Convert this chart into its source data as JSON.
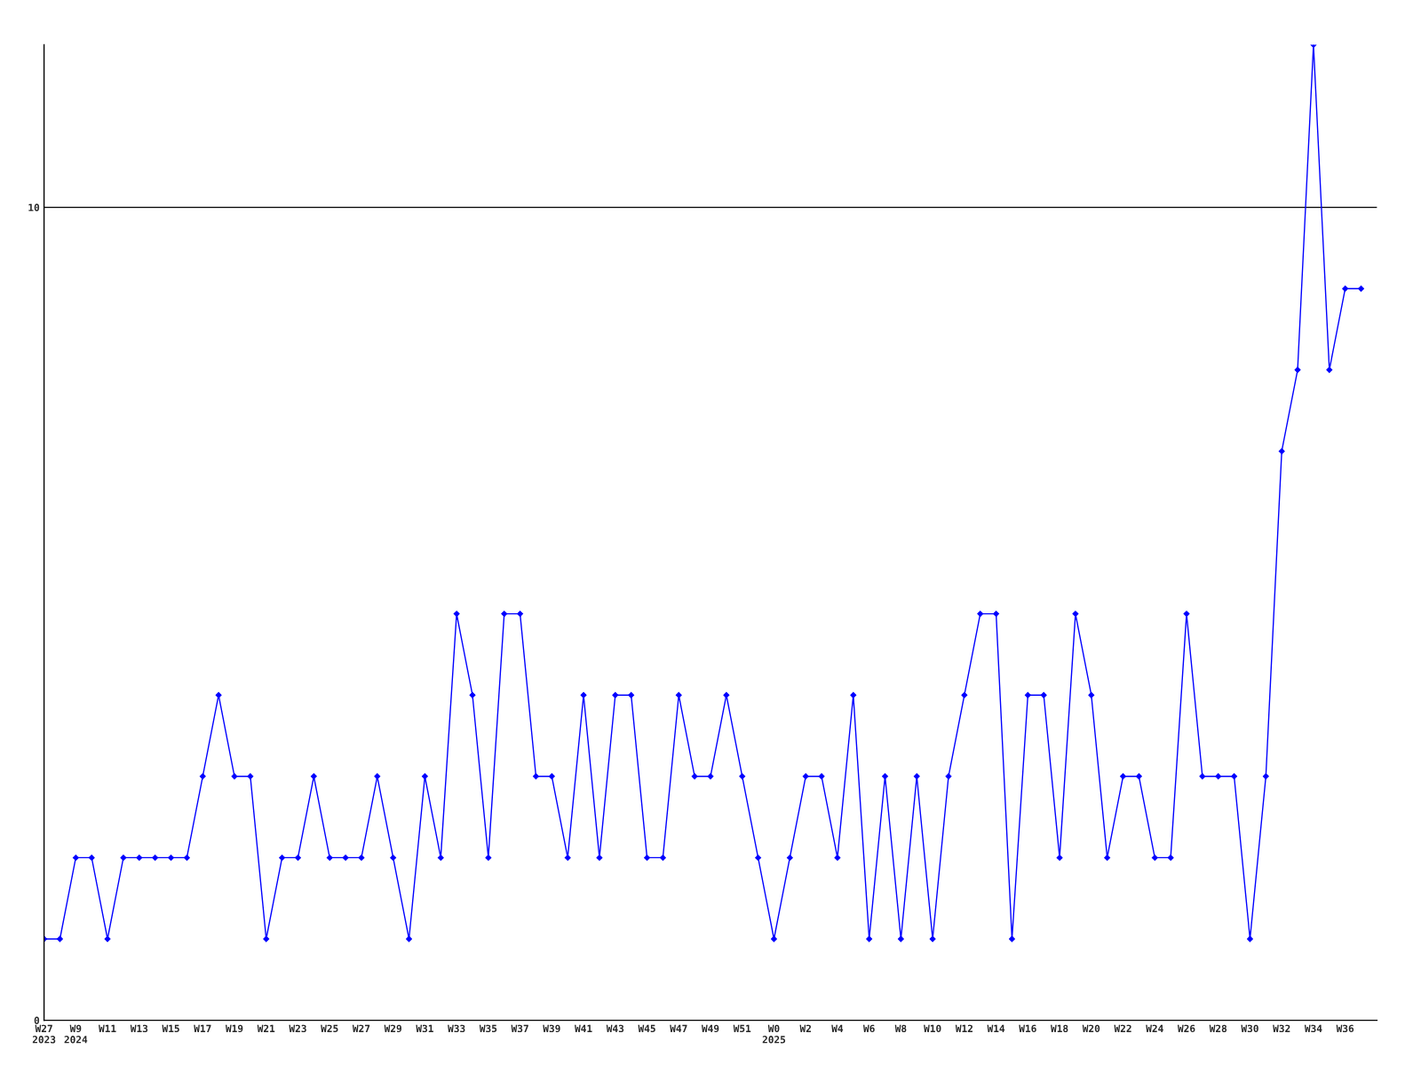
{
  "chart_data": {
    "type": "line",
    "categories": [
      "W27\n2023",
      null,
      "W9\n2024",
      null,
      "W11",
      null,
      "W13",
      null,
      "W15",
      null,
      "W17",
      null,
      "W19",
      null,
      "W21",
      null,
      "W23",
      null,
      "W25",
      null,
      "W27",
      null,
      "W29",
      null,
      "W31",
      null,
      "W33",
      null,
      "W35",
      null,
      "W37",
      null,
      "W39",
      null,
      "W41",
      null,
      "W43",
      null,
      "W45",
      null,
      "W47",
      null,
      "W49",
      null,
      "W51",
      null,
      "W0\n2025",
      null,
      "W2",
      null,
      "W4",
      null,
      "W6",
      null,
      "W8",
      null,
      "W10",
      null,
      "W12",
      null,
      "W14",
      null,
      "W16",
      null,
      "W18",
      null,
      "W20",
      null,
      "W22",
      null,
      "W24",
      null,
      "W26",
      null,
      "W28",
      null,
      "W30",
      null,
      "W32",
      null,
      "W34",
      null,
      "W36",
      null
    ],
    "series": [
      {
        "color": "#0000ff",
        "values": [
          1,
          1,
          2,
          2,
          1,
          2,
          2,
          2,
          2,
          2,
          3,
          4,
          3,
          3,
          1,
          2,
          2,
          3,
          2,
          2,
          2,
          3,
          2,
          1,
          3,
          2,
          5,
          4,
          2,
          5,
          5,
          3,
          3,
          2,
          4,
          2,
          4,
          4,
          2,
          2,
          4,
          3,
          3,
          4,
          3,
          2,
          1,
          2,
          3,
          3,
          2,
          4,
          1,
          3,
          1,
          3,
          1,
          3,
          4,
          5,
          5,
          1,
          4,
          4,
          2,
          5,
          4,
          2,
          3,
          3,
          2,
          2,
          5,
          3,
          3,
          3,
          1,
          3,
          7,
          8,
          12,
          8,
          9,
          9
        ]
      }
    ],
    "ylim": [
      0,
      12
    ],
    "yticks": [
      0,
      10
    ],
    "grid": "y",
    "marker": "diamond",
    "line_style": "solid"
  }
}
